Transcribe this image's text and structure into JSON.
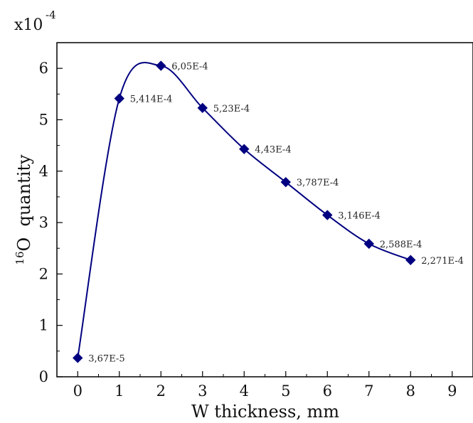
{
  "chart_data": {
    "type": "line",
    "xlabel": "W thickness, mm",
    "ylabel_superscript": "16",
    "ylabel_main": "O  quantity",
    "y_multiplier_base": "x10",
    "y_multiplier_exponent": "-4",
    "xlim": [
      -0.5,
      9.5
    ],
    "ylim": [
      0,
      6.5
    ],
    "x_ticks": [
      "0",
      "1",
      "2",
      "3",
      "4",
      "5",
      "6",
      "7",
      "8",
      "9"
    ],
    "y_ticks": [
      "0",
      "1",
      "2",
      "3",
      "4",
      "5",
      "6"
    ],
    "grid": false,
    "series": [
      {
        "x": [
          0,
          1,
          2,
          3,
          4,
          5,
          6,
          7,
          8
        ],
        "y": [
          0.367,
          5.414,
          6.05,
          5.23,
          4.43,
          3.787,
          3.146,
          2.588,
          2.271
        ],
        "labels": [
          "3,67E-5",
          "5,414E-4",
          "6,05E-4",
          "5,23E-4",
          "4,43E-4",
          "3,787E-4",
          "3,146E-4",
          "2,588E-4",
          "2,271E-4"
        ],
        "color": "#000080",
        "marker": "diamond",
        "smooth": true
      }
    ]
  }
}
